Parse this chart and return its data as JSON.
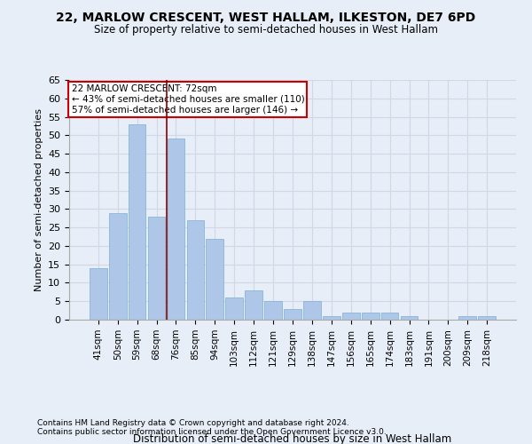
{
  "title": "22, MARLOW CRESCENT, WEST HALLAM, ILKESTON, DE7 6PD",
  "subtitle": "Size of property relative to semi-detached houses in West Hallam",
  "xlabel": "Distribution of semi-detached houses by size in West Hallam",
  "ylabel": "Number of semi-detached properties",
  "footnote1": "Contains HM Land Registry data © Crown copyright and database right 2024.",
  "footnote2": "Contains public sector information licensed under the Open Government Licence v3.0.",
  "categories": [
    "41sqm",
    "50sqm",
    "59sqm",
    "68sqm",
    "76sqm",
    "85sqm",
    "94sqm",
    "103sqm",
    "112sqm",
    "121sqm",
    "129sqm",
    "138sqm",
    "147sqm",
    "156sqm",
    "165sqm",
    "174sqm",
    "183sqm",
    "191sqm",
    "200sqm",
    "209sqm",
    "218sqm"
  ],
  "values": [
    14,
    29,
    53,
    28,
    49,
    27,
    22,
    6,
    8,
    5,
    3,
    5,
    1,
    2,
    2,
    2,
    1,
    0,
    0,
    1,
    1
  ],
  "bar_color": "#aec6e8",
  "bar_edge_color": "#7bafd4",
  "grid_color": "#d0d8e8",
  "vline_color": "#8b0000",
  "annotation_text": "22 MARLOW CRESCENT: 72sqm\n← 43% of semi-detached houses are smaller (110)\n57% of semi-detached houses are larger (146) →",
  "annotation_box_color": "white",
  "annotation_box_edge_color": "#cc0000",
  "ylim": [
    0,
    65
  ],
  "yticks": [
    0,
    5,
    10,
    15,
    20,
    25,
    30,
    35,
    40,
    45,
    50,
    55,
    60,
    65
  ],
  "bg_color": "#e8eef7"
}
